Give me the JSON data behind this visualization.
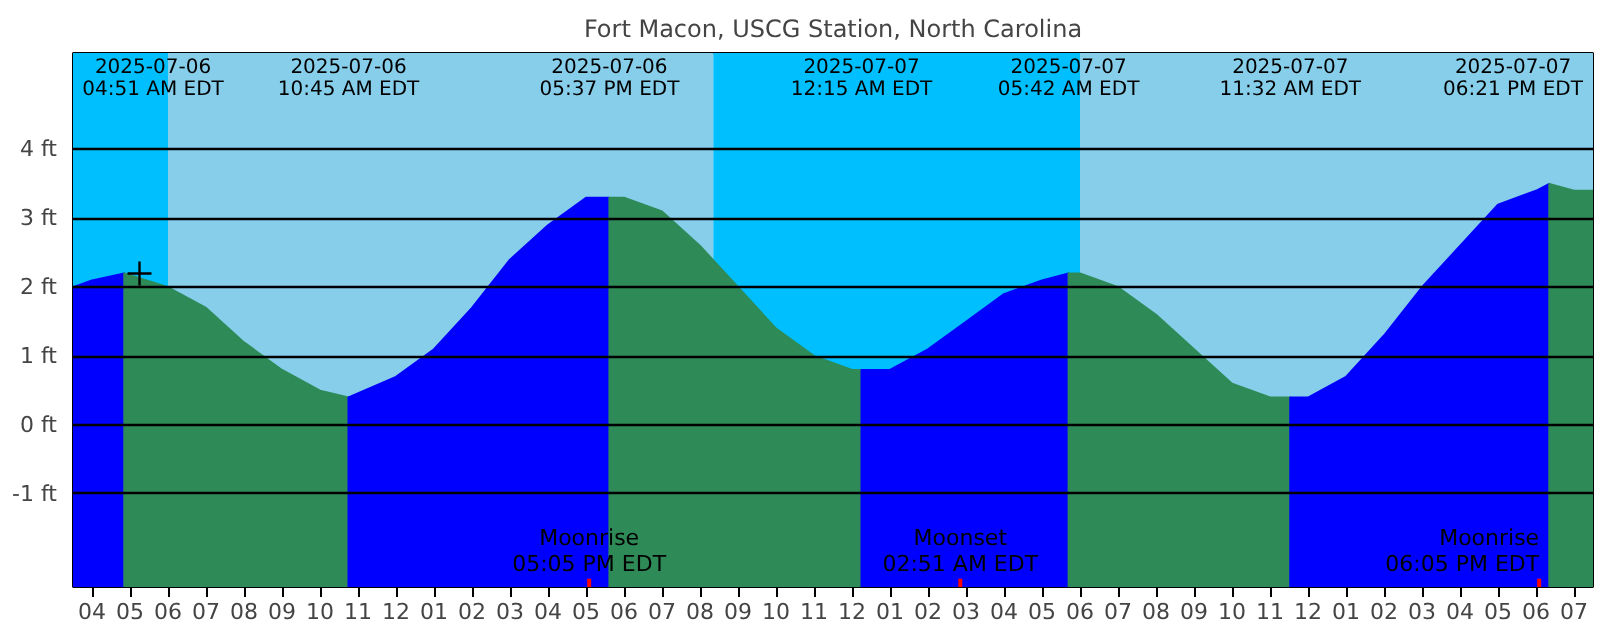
{
  "chart_data": {
    "type": "area",
    "title": "Fort Macon, USCG Station, North Carolina",
    "series": [
      {
        "color": "#0000ff",
        "x": [
          "2025-07-06T03:30",
          "2025-07-06T04:00",
          "2025-07-06T04:51"
        ],
        "values": [
          2.0,
          2.1,
          2.2
        ]
      },
      {
        "color": "#2e8b57",
        "x": [
          "2025-07-06T04:51",
          "2025-07-06T06:00",
          "2025-07-06T07:00",
          "2025-07-06T08:00",
          "2025-07-06T09:00",
          "2025-07-06T10:00",
          "2025-07-06T10:45"
        ],
        "values": [
          2.2,
          2.0,
          1.7,
          1.2,
          0.8,
          0.5,
          0.4
        ]
      },
      {
        "color": "#0000ff",
        "x": [
          "2025-07-06T10:45",
          "2025-07-06T12:00",
          "2025-07-06T13:00",
          "2025-07-06T14:00",
          "2025-07-06T15:00",
          "2025-07-06T16:00",
          "2025-07-06T17:00",
          "2025-07-06T17:37"
        ],
        "values": [
          0.4,
          0.7,
          1.1,
          1.7,
          2.4,
          2.9,
          3.3,
          3.3
        ]
      },
      {
        "color": "#2e8b57",
        "x": [
          "2025-07-06T17:37",
          "2025-07-06T18:00",
          "2025-07-06T19:00",
          "2025-07-06T20:00",
          "2025-07-06T21:00",
          "2025-07-06T22:00",
          "2025-07-06T23:00",
          "2025-07-07T00:00",
          "2025-07-07T00:15"
        ],
        "values": [
          3.3,
          3.3,
          3.1,
          2.6,
          2.0,
          1.4,
          1.0,
          0.8,
          0.8
        ]
      },
      {
        "color": "#0000ff",
        "x": [
          "2025-07-07T00:15",
          "2025-07-07T01:00",
          "2025-07-07T02:00",
          "2025-07-07T03:00",
          "2025-07-07T04:00",
          "2025-07-07T05:00",
          "2025-07-07T05:42"
        ],
        "values": [
          0.8,
          0.8,
          1.1,
          1.5,
          1.9,
          2.1,
          2.2
        ]
      },
      {
        "color": "#2e8b57",
        "x": [
          "2025-07-07T05:42",
          "2025-07-07T06:00",
          "2025-07-07T07:00",
          "2025-07-07T08:00",
          "2025-07-07T09:00",
          "2025-07-07T10:00",
          "2025-07-07T11:00",
          "2025-07-07T11:32"
        ],
        "values": [
          2.2,
          2.2,
          2.0,
          1.6,
          1.1,
          0.6,
          0.4,
          0.4
        ]
      },
      {
        "color": "#0000ff",
        "x": [
          "2025-07-07T11:32",
          "2025-07-07T12:00",
          "2025-07-07T13:00",
          "2025-07-07T14:00",
          "2025-07-07T15:00",
          "2025-07-07T16:00",
          "2025-07-07T17:00",
          "2025-07-07T18:00",
          "2025-07-07T18:21"
        ],
        "values": [
          0.4,
          0.4,
          0.7,
          1.3,
          2.0,
          2.6,
          3.2,
          3.4,
          3.5
        ]
      },
      {
        "color": "#2e8b57",
        "x": [
          "2025-07-07T18:21",
          "2025-07-07T19:00",
          "2025-07-07T19:30"
        ],
        "values": [
          3.5,
          3.4,
          3.4
        ]
      },
      {
        "type": "scatter",
        "marker": "cross",
        "color": "#000000",
        "x": [
          "2025-07-06T05:15"
        ],
        "values": [
          2.2
        ]
      }
    ],
    "xlim": [
      "2025-07-06T03:30",
      "2025-07-07T19:30"
    ],
    "ylim": [
      -2.35,
      5.4
    ],
    "yticks": [
      {
        "value": -1,
        "label": "-1 ft"
      },
      {
        "value": 0,
        "label": "0 ft"
      },
      {
        "value": 1,
        "label": "1 ft"
      },
      {
        "value": 2,
        "label": "2 ft"
      },
      {
        "value": 3,
        "label": "3 ft"
      },
      {
        "value": 4,
        "label": "4 ft"
      }
    ],
    "xticks": [
      {
        "value": "2025-07-06T04:00",
        "label": "04"
      },
      {
        "value": "2025-07-06T05:00",
        "label": "05"
      },
      {
        "value": "2025-07-06T06:00",
        "label": "06"
      },
      {
        "value": "2025-07-06T07:00",
        "label": "07"
      },
      {
        "value": "2025-07-06T08:00",
        "label": "08"
      },
      {
        "value": "2025-07-06T09:00",
        "label": "09"
      },
      {
        "value": "2025-07-06T10:00",
        "label": "10"
      },
      {
        "value": "2025-07-06T11:00",
        "label": "11"
      },
      {
        "value": "2025-07-06T12:00",
        "label": "12"
      },
      {
        "value": "2025-07-06T13:00",
        "label": "01"
      },
      {
        "value": "2025-07-06T14:00",
        "label": "02"
      },
      {
        "value": "2025-07-06T15:00",
        "label": "03"
      },
      {
        "value": "2025-07-06T16:00",
        "label": "04"
      },
      {
        "value": "2025-07-06T17:00",
        "label": "05"
      },
      {
        "value": "2025-07-06T18:00",
        "label": "06"
      },
      {
        "value": "2025-07-06T19:00",
        "label": "07"
      },
      {
        "value": "2025-07-06T20:00",
        "label": "08"
      },
      {
        "value": "2025-07-06T21:00",
        "label": "09"
      },
      {
        "value": "2025-07-06T22:00",
        "label": "10"
      },
      {
        "value": "2025-07-06T23:00",
        "label": "11"
      },
      {
        "value": "2025-07-07T00:00",
        "label": "12"
      },
      {
        "value": "2025-07-07T01:00",
        "label": "01"
      },
      {
        "value": "2025-07-07T02:00",
        "label": "02"
      },
      {
        "value": "2025-07-07T03:00",
        "label": "03"
      },
      {
        "value": "2025-07-07T04:00",
        "label": "04"
      },
      {
        "value": "2025-07-07T05:00",
        "label": "05"
      },
      {
        "value": "2025-07-07T06:00",
        "label": "06"
      },
      {
        "value": "2025-07-07T07:00",
        "label": "07"
      },
      {
        "value": "2025-07-07T08:00",
        "label": "08"
      },
      {
        "value": "2025-07-07T09:00",
        "label": "09"
      },
      {
        "value": "2025-07-07T10:00",
        "label": "10"
      },
      {
        "value": "2025-07-07T11:00",
        "label": "11"
      },
      {
        "value": "2025-07-07T12:00",
        "label": "12"
      },
      {
        "value": "2025-07-07T13:00",
        "label": "01"
      },
      {
        "value": "2025-07-07T14:00",
        "label": "02"
      },
      {
        "value": "2025-07-07T15:00",
        "label": "03"
      },
      {
        "value": "2025-07-07T16:00",
        "label": "04"
      },
      {
        "value": "2025-07-07T17:00",
        "label": "05"
      },
      {
        "value": "2025-07-07T18:00",
        "label": "06"
      },
      {
        "value": "2025-07-07T19:00",
        "label": "07"
      }
    ],
    "grid": "y",
    "bands": [
      {
        "axis": "x",
        "from": "2025-07-06T03:30",
        "to": "2025-07-06T06:00",
        "color": "#00bfff"
      },
      {
        "axis": "x",
        "from": "2025-07-06T06:00",
        "to": "2025-07-06T20:21",
        "color": "#87ceeb"
      },
      {
        "axis": "x",
        "from": "2025-07-06T20:21",
        "to": "2025-07-07T06:00",
        "color": "#00bfff"
      },
      {
        "axis": "x",
        "from": "2025-07-07T06:00",
        "to": "2025-07-07T19:30",
        "color": "#87ceeb"
      }
    ],
    "ref_lines": [
      {
        "axis": "x",
        "value": "2025-07-06T17:05",
        "label": "Moonrise\n05:05 PM EDT",
        "color": "#ff0000"
      },
      {
        "axis": "x",
        "value": "2025-07-07T02:51",
        "label": "Moonset\n02:51 AM EDT",
        "color": "#ff0000"
      },
      {
        "axis": "x",
        "value": "2025-07-07T18:05",
        "label": "Moonrise\n06:05 PM EDT",
        "color": "#ff0000"
      }
    ],
    "annotations": [
      "2025-07-06\n04:51 AM EDT",
      "2025-07-06\n10:45 AM EDT",
      "2025-07-06\n05:37 PM EDT",
      "2025-07-07\n12:15 AM EDT",
      "2025-07-07\n05:42 AM EDT",
      "2025-07-07\n11:32 AM EDT",
      "2025-07-07\n06:21 PM EDT"
    ]
  }
}
